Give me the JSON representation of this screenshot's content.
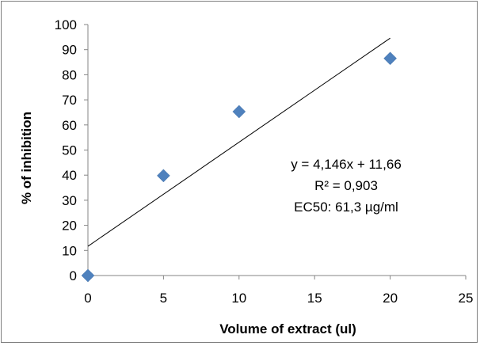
{
  "chart_data": {
    "type": "scatter",
    "title": "",
    "xlabel": "Volume of extract (ul)",
    "ylabel": "%  of inhibition",
    "xlim": [
      0,
      25
    ],
    "ylim": [
      0,
      100
    ],
    "x_ticks": [
      0,
      5,
      10,
      15,
      20,
      25
    ],
    "y_ticks": [
      0,
      10,
      20,
      30,
      40,
      50,
      60,
      70,
      80,
      90,
      100
    ],
    "grid": false,
    "legend": "none",
    "series": [
      {
        "x": [
          0,
          5,
          10,
          20
        ],
        "y": [
          0,
          39.8,
          65.3,
          86.5
        ],
        "marker": "diamond",
        "color": "#4f81bd"
      }
    ],
    "trendline": {
      "type": "linear",
      "slope": 4.146,
      "intercept": 11.66,
      "x_range": [
        0,
        20
      ],
      "color": "#000000"
    },
    "annotations": [
      "y = 4,146x + 11,66",
      "R² = 0,903",
      "EC50: 61,3 µg/ml"
    ]
  }
}
